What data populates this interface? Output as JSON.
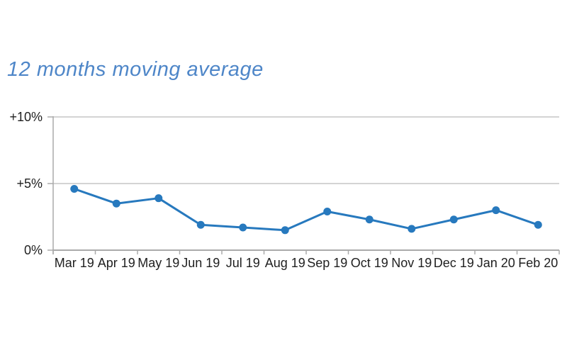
{
  "title": {
    "text": "12 months moving average",
    "color": "#4e86c8"
  },
  "chart_data": {
    "type": "line",
    "title": "12 months moving average",
    "categories": [
      "Mar 19",
      "Apr 19",
      "May 19",
      "Jun 19",
      "Jul 19",
      "Aug 19",
      "Sep 19",
      "Oct 19",
      "Nov 19",
      "Dec 19",
      "Jan 20",
      "Feb 20"
    ],
    "series": [
      {
        "name": "12 months moving average",
        "values": [
          4.6,
          3.5,
          3.9,
          1.9,
          1.7,
          1.5,
          2.9,
          2.3,
          1.6,
          2.3,
          3.0,
          1.9
        ]
      }
    ],
    "xlabel": "",
    "ylabel": "",
    "ylim": [
      0,
      10
    ],
    "yticks": [
      {
        "value": 0,
        "label": "0%"
      },
      {
        "value": 5,
        "label": "+5%"
      },
      {
        "value": 10,
        "label": "+10%"
      }
    ],
    "grid": "horizontal gridlines at +5% and +10%",
    "legend": "none",
    "marker": "filled circle",
    "colors": {
      "line": "#2779be",
      "marker": "#2779be",
      "gridline": "#c6c6c6",
      "axis": "#aaaaaa",
      "tick_label": "#1f1f1f"
    }
  }
}
